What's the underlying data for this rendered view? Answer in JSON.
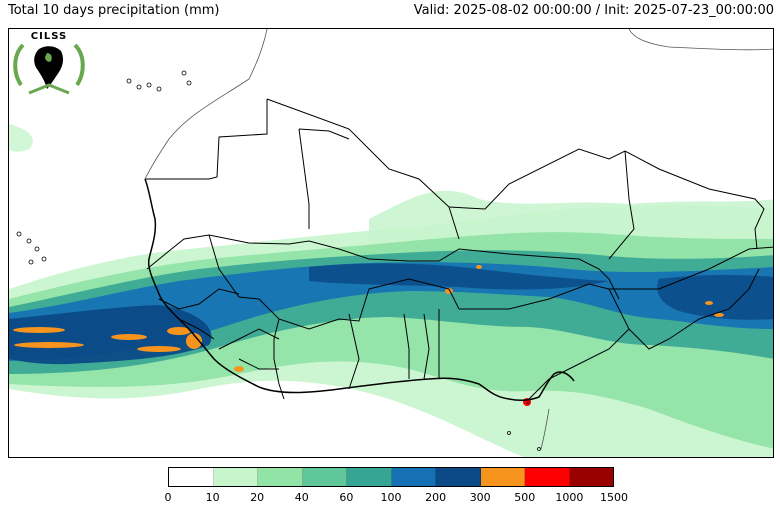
{
  "header": {
    "title_left": "Total 10 days precipitation (mm)",
    "title_right": "Valid: 2025-08-02 00:00:00 / Init: 2025-07-23_00:00:00"
  },
  "logo": {
    "text": "CILSS",
    "name": "cilss-logo"
  },
  "legend": {
    "bins": [
      {
        "from": "0",
        "to": "10",
        "color": "#ffffff"
      },
      {
        "from": "10",
        "to": "20",
        "color": "#c7f5cc"
      },
      {
        "from": "20",
        "to": "40",
        "color": "#91e3a6"
      },
      {
        "from": "40",
        "to": "60",
        "color": "#5fc79a"
      },
      {
        "from": "60",
        "to": "100",
        "color": "#36a594"
      },
      {
        "from": "100",
        "to": "200",
        "color": "#1571b4"
      },
      {
        "from": "200",
        "to": "300",
        "color": "#0b4a86"
      },
      {
        "from": "300",
        "to": "500",
        "color": "#f7941d"
      },
      {
        "from": "500",
        "to": "1000",
        "color": "#ff0000"
      },
      {
        "from": "1000",
        "to": "1500",
        "color": "#990000"
      }
    ],
    "tick_labels": [
      "0",
      "10",
      "20",
      "40",
      "60",
      "100",
      "200",
      "300",
      "500",
      "1000",
      "1500"
    ]
  },
  "colors": {
    "light_green": "#c7f5cc",
    "mid_green": "#91e3a6",
    "teal": "#36a594",
    "blue": "#1571b4",
    "dark_blue": "#0b4a86",
    "orange": "#f7941d",
    "red": "#ff0000",
    "border": "#000000"
  }
}
